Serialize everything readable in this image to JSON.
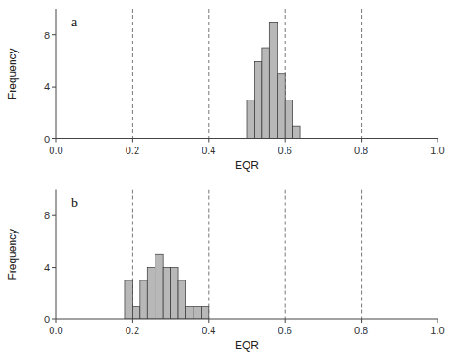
{
  "chart_data": [
    {
      "type": "histogram",
      "annotation": "a",
      "bins": [
        0.5,
        0.52,
        0.54,
        0.56,
        0.58,
        0.6,
        0.62,
        0.64
      ],
      "values": [
        3,
        6,
        7,
        9,
        5,
        3,
        1
      ],
      "reference_lines": [
        0.2,
        0.4,
        0.6,
        0.8
      ],
      "color": "#b8b8b8",
      "xlabel": "EQR",
      "ylabel": "Frequency",
      "xlim": [
        0.0,
        1.0
      ],
      "xticks": [
        {
          "value": 0.0,
          "label": "0.0"
        },
        0.2,
        0.4,
        0.6,
        0.8,
        {
          "value": 1.0,
          "label": "1.0"
        }
      ],
      "ylim": [
        0,
        10
      ],
      "yticks": [
        0,
        4,
        8
      ],
      "grid": false
    },
    {
      "type": "histogram",
      "annotation": "b",
      "bins": [
        0.18,
        0.2,
        0.22,
        0.24,
        0.26,
        0.28,
        0.3,
        0.32,
        0.34,
        0.36,
        0.38,
        0.4
      ],
      "values": [
        3,
        1,
        3,
        4,
        5,
        4,
        4,
        3,
        1,
        1,
        1
      ],
      "reference_lines": [
        0.2,
        0.4,
        0.6,
        0.8
      ],
      "color": "#b8b8b8",
      "xlabel": "EQR",
      "ylabel": "Frequency",
      "xlim": [
        0.0,
        1.0
      ],
      "xticks": [
        {
          "value": 0.0,
          "label": "0.0"
        },
        0.2,
        0.4,
        0.6,
        0.8,
        {
          "value": 1.0,
          "label": "1.0"
        }
      ],
      "ylim": [
        0,
        10
      ],
      "yticks": [
        0,
        4,
        8
      ],
      "grid": false
    }
  ]
}
